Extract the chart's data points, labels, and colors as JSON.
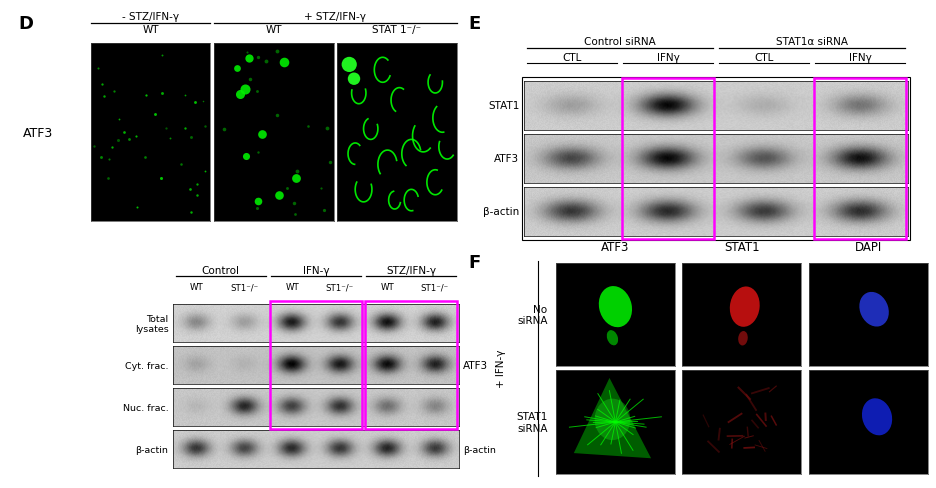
{
  "panel_D_label": "D",
  "panel_E_label": "E",
  "panel_F_label": "F",
  "background_color": "#ffffff",
  "magenta_box_color": "#FF00FF",
  "D_img_top_labels": [
    "- STZ/IFN-γ",
    "+ STZ/IFN-γ"
  ],
  "D_img_sub_labels": [
    "WT",
    "WT",
    "STAT 1⁻/⁻"
  ],
  "D_left_label": "ATF3",
  "D_wb_group_labels": [
    "Control",
    "IFN-γ",
    "STZ/IFN-γ"
  ],
  "D_wb_lane_labels": [
    "WT",
    "ST1⁻/⁻",
    "WT",
    "ST1⁻/⁻",
    "WT",
    "ST1⁻/⁻"
  ],
  "D_wb_row_labels": [
    "Total\nlysates",
    "Cyt. frac.",
    "Nuc. frac.",
    "β-actin"
  ],
  "D_wb_right_atf3": "ATF3",
  "D_wb_right_bactin": "β-actin",
  "E_group_labels": [
    "Control siRNA",
    "STAT1α siRNA"
  ],
  "E_sub_labels": [
    "CTL",
    "IFNγ",
    "CTL",
    "IFNγ"
  ],
  "E_row_labels": [
    "STAT1",
    "ATF3",
    "β-actin"
  ],
  "F_col_labels": [
    "ATF3",
    "STAT1",
    "DAPI"
  ],
  "F_row_label_top": "No\nsiRNA",
  "F_row_label_bot": "STAT1\nsiRNA",
  "F_left_label": "+ IFN-γ"
}
